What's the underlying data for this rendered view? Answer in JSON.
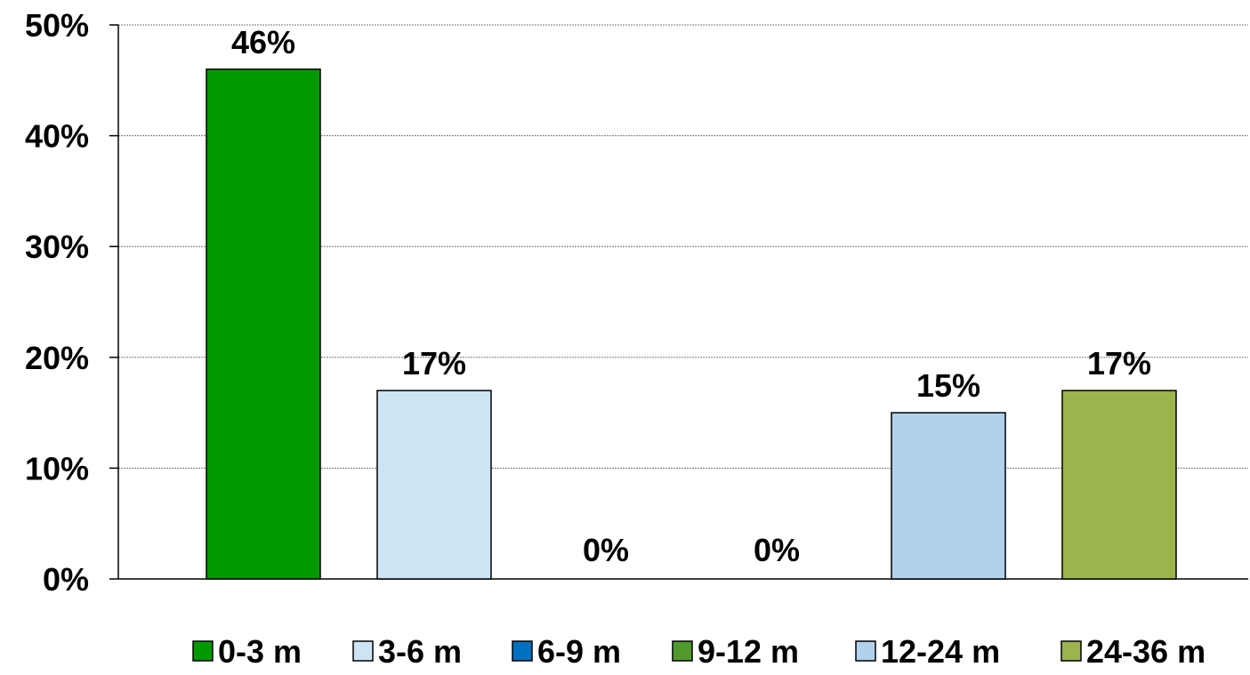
{
  "chart_data": {
    "type": "bar",
    "categories": [
      "0-3 m",
      "3-6 m",
      "6-9 m",
      "9-12 m",
      "12-24 m",
      "24-36 m"
    ],
    "values": [
      46,
      17,
      0,
      0,
      15,
      17
    ],
    "data_labels": [
      "46%",
      "17%",
      "0%",
      "0%",
      "15%",
      "17%"
    ],
    "colors": [
      "#009900",
      "#cce4f4",
      "#0070c0",
      "#4f9a2b",
      "#b0d2ec",
      "#9bb44c"
    ],
    "ylim": [
      0,
      50
    ],
    "y_ticks": [
      0,
      10,
      20,
      30,
      40,
      50
    ],
    "y_tick_labels": [
      "0%",
      "10%",
      "20%",
      "30%",
      "40%",
      "50%"
    ],
    "grid": true,
    "legend": "bottom",
    "legend_entries": [
      "0-3 m",
      "3-6 m",
      "6-9 m",
      "9-12 m",
      "12-24 m",
      "24-36 m"
    ],
    "title": "",
    "xlabel": "",
    "ylabel": ""
  }
}
